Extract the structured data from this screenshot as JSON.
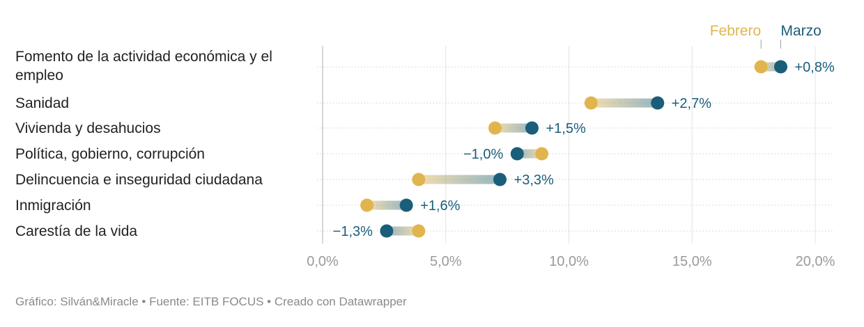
{
  "chart_data": {
    "type": "dumbbell",
    "series": [
      {
        "name": "Febrero",
        "color": "#e1b54e"
      },
      {
        "name": "Marzo",
        "color": "#1a5e7a"
      }
    ],
    "categories": [
      {
        "label": [
          "Fomento de la actividad económica y el",
          "empleo"
        ],
        "febrero": 17.8,
        "marzo": 18.6,
        "change": "+0,8%"
      },
      {
        "label": [
          "Sanidad"
        ],
        "febrero": 10.9,
        "marzo": 13.6,
        "change": "+2,7%"
      },
      {
        "label": [
          "Vivienda y desahucios"
        ],
        "febrero": 7.0,
        "marzo": 8.5,
        "change": "+1,5%"
      },
      {
        "label": [
          "Política, gobierno, corrupción"
        ],
        "febrero": 8.9,
        "marzo": 7.9,
        "change": "−1,0%"
      },
      {
        "label": [
          "Delincuencia e inseguridad ciudadana"
        ],
        "febrero": 3.9,
        "marzo": 7.2,
        "change": "+3,3%"
      },
      {
        "label": [
          "Inmigración"
        ],
        "febrero": 1.8,
        "marzo": 3.4,
        "change": "+1,6%"
      },
      {
        "label": [
          "Carestía de la vida"
        ],
        "febrero": 3.9,
        "marzo": 2.6,
        "change": "−1,3%"
      }
    ],
    "x_ticks": [
      {
        "value": 0,
        "label": "0,0%"
      },
      {
        "value": 5,
        "label": "5,0%"
      },
      {
        "value": 10,
        "label": "10,0%"
      },
      {
        "value": 15,
        "label": "15,0%"
      },
      {
        "value": 20,
        "label": "20,0%"
      }
    ],
    "xlim": [
      0,
      20
    ],
    "grid": true,
    "legend_position": "top-right"
  },
  "footer": {
    "text": "Gráfico: Silván&Miracle • Fuente: EITB FOCUS • Creado con Datawrapper"
  }
}
